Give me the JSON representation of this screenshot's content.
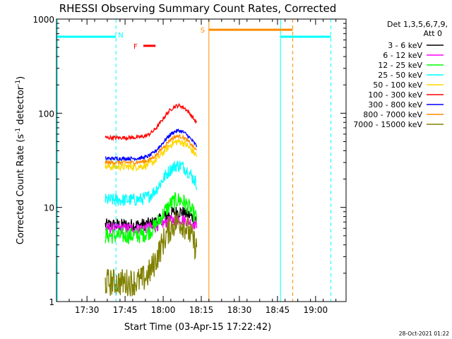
{
  "chart_data": {
    "type": "line",
    "title": "RHESSI Observing Summary Count Rates, Corrected",
    "xlabel": "Start Time (03-Apr-15 17:22:42)",
    "ylabel_main": "Corrected Count Rate (s",
    "ylabel_sup1": "-1",
    "ylabel_mid": " detector",
    "ylabel_sup2": "-1",
    "ylabel_end": ")",
    "y_log": true,
    "ylim": [
      1,
      1000
    ],
    "xlim_minutes": [
      17.3,
      19.2
    ],
    "x_ticks": [
      {
        "label": "17:30",
        "t": 17.5
      },
      {
        "label": "17:45",
        "t": 17.75
      },
      {
        "label": "18:00",
        "t": 18.0
      },
      {
        "label": "18:15",
        "t": 18.25
      },
      {
        "label": "18:30",
        "t": 18.5
      },
      {
        "label": "18:45",
        "t": 18.75
      },
      {
        "label": "19:00",
        "t": 19.0
      }
    ],
    "y_ticks": [
      {
        "label": "1",
        "v": 1
      },
      {
        "label": "10",
        "v": 10
      },
      {
        "label": "100",
        "v": 100
      },
      {
        "label": "1000",
        "v": 1000
      }
    ],
    "legend_header_1": "Det 1,3,5,6,7,9,",
    "legend_header_2": "Att 0",
    "series": [
      {
        "name": "3 - 6 keV",
        "color": "#000000",
        "base": 6.5,
        "peak": 9,
        "noise": 0.07
      },
      {
        "name": "6 - 12 keV",
        "color": "#ff00ff",
        "base": 6,
        "peak": 7.5,
        "noise": 0.06
      },
      {
        "name": "12 - 25 keV",
        "color": "#00ff00",
        "base": 5,
        "peak": 12,
        "noise": 0.09
      },
      {
        "name": "25 - 50 keV",
        "color": "#00ffff",
        "base": 12,
        "peak": 28,
        "noise": 0.07
      },
      {
        "name": "50 - 100 keV",
        "color": "#ffd700",
        "base": 27,
        "peak": 50,
        "noise": 0.04
      },
      {
        "name": "100 - 300 keV",
        "color": "#ff0000",
        "base": 55,
        "peak": 120,
        "noise": 0.02
      },
      {
        "name": "300 - 800 keV",
        "color": "#0000ff",
        "base": 33,
        "peak": 65,
        "noise": 0.02
      },
      {
        "name": "800 - 7000 keV",
        "color": "#ff8c00",
        "base": 30,
        "peak": 57,
        "noise": 0.02
      },
      {
        "name": "7000 - 15000 keV",
        "color": "#808000",
        "base": 1.6,
        "peak": 7,
        "noise": 0.15
      }
    ],
    "markers": [
      {
        "label": "N",
        "color": "#00ffff"
      },
      {
        "label": "F",
        "color": "#ff0000"
      },
      {
        "label": "S",
        "color": "#ff8c00"
      }
    ],
    "data_window": {
      "start": 17.62,
      "end": 18.22
    },
    "peak_time": 18.1
  },
  "footer": {
    "date": "28-Oct-2021 01:22"
  }
}
